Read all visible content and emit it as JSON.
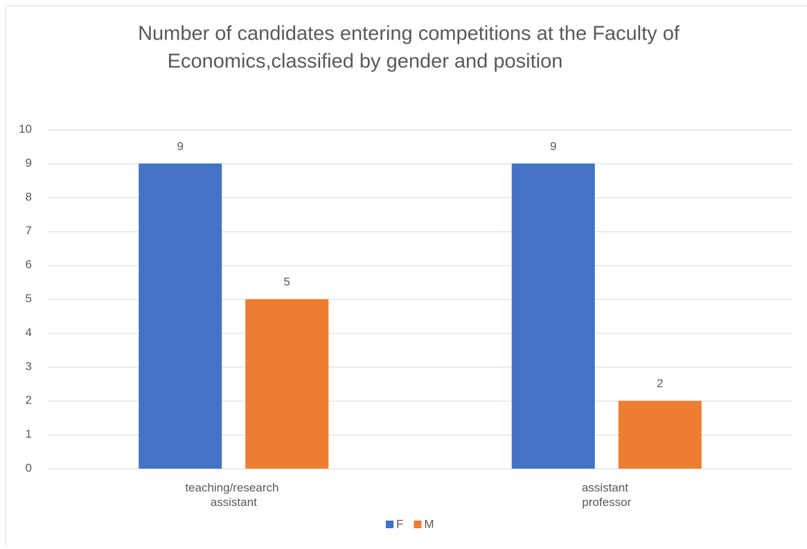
{
  "chart_data": {
    "type": "bar",
    "title": [
      "Number of candidates entering competitions at the Faculty of",
      "Economics,classified by gender and position"
    ],
    "categories": [
      "teaching/research assistant",
      "assistant professor"
    ],
    "series": [
      {
        "name": "F",
        "color": "#4472c4",
        "values": [
          9,
          9
        ]
      },
      {
        "name": "M",
        "color": "#ed7d31",
        "values": [
          5,
          2
        ]
      }
    ],
    "ylim": [
      0,
      10
    ],
    "yticks": [
      0,
      1,
      2,
      3,
      4,
      5,
      6,
      7,
      8,
      9,
      10
    ],
    "grid": true,
    "legend": "bottom"
  }
}
